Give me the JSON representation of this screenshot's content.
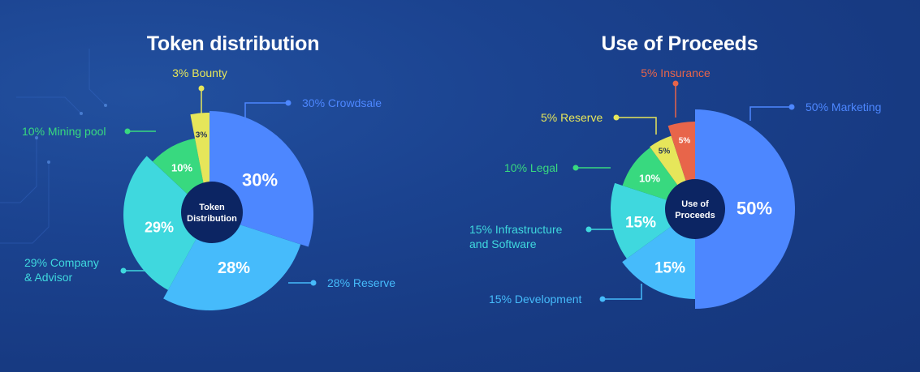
{
  "chart_data": [
    {
      "type": "pie",
      "title": "Token distribution",
      "center_label": [
        "Token",
        "Distribution"
      ],
      "slices": [
        {
          "label": "30% Crowdsale",
          "inner": "30%",
          "value": 30,
          "color": "#4d87ff"
        },
        {
          "label": "28% Reserve",
          "inner": "28%",
          "value": 28,
          "color": "#46bbfb"
        },
        {
          "label": "29% Company & Advisor",
          "inner": "29%",
          "value": 29,
          "color": "#3fd8de"
        },
        {
          "label": "10% Mining pool",
          "inner": "10%",
          "value": 10,
          "color": "#38d97f"
        },
        {
          "label": "3% Bounty",
          "inner": "3%",
          "value": 3,
          "color": "#e6e65a"
        }
      ]
    },
    {
      "type": "pie",
      "title": "Use of Proceeds",
      "center_label": [
        "Use of",
        "Proceeds"
      ],
      "slices": [
        {
          "label": "50% Marketing",
          "inner": "50%",
          "value": 50,
          "color": "#4d87ff"
        },
        {
          "label": "15% Development",
          "inner": "15%",
          "value": 15,
          "color": "#46bbfb"
        },
        {
          "label": "15% Infrastructure and Software",
          "inner": "15%",
          "value": 15,
          "color": "#3fd8de"
        },
        {
          "label": "10% Legal",
          "inner": "10%",
          "value": 10,
          "color": "#38d97f"
        },
        {
          "label": "5% Reserve",
          "inner": "5%",
          "value": 5,
          "color": "#e6e65a"
        },
        {
          "label": "5% Insurance",
          "inner": "5%",
          "value": 5,
          "color": "#e8654a"
        }
      ]
    }
  ]
}
